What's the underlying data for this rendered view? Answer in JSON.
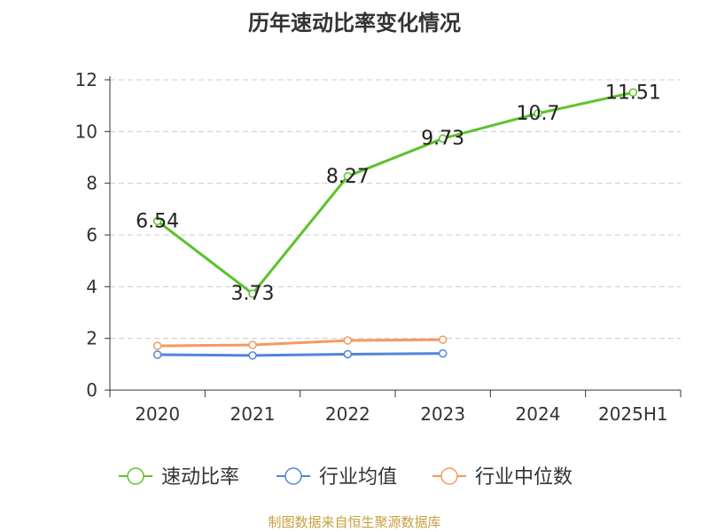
{
  "chart_data": {
    "type": "line",
    "title": "历年速动比率变化情况",
    "categories": [
      "2020",
      "2021",
      "2022",
      "2023",
      "2024",
      "2025H1"
    ],
    "ylim": [
      0,
      12
    ],
    "yticks": [
      "0",
      "2",
      "4",
      "6",
      "8",
      "10",
      "12"
    ],
    "grid": true,
    "legend_position": "bottom",
    "series": [
      {
        "name": "速动比率",
        "color": "#5cc22c",
        "values": [
          6.54,
          3.73,
          8.27,
          9.73,
          10.7,
          11.51
        ],
        "labels": [
          "6.54",
          "3.73",
          "8.27",
          "9.73",
          "10.7",
          "11.51"
        ]
      },
      {
        "name": "行业均值",
        "color": "#4f86dc",
        "values": [
          1.37,
          1.34,
          1.39,
          1.42,
          null,
          null
        ]
      },
      {
        "name": "行业中位数",
        "color": "#f59a5f",
        "values": [
          1.71,
          1.75,
          1.92,
          1.95,
          null,
          null
        ]
      }
    ]
  },
  "source_note": "制图数据来自恒生聚源数据库"
}
